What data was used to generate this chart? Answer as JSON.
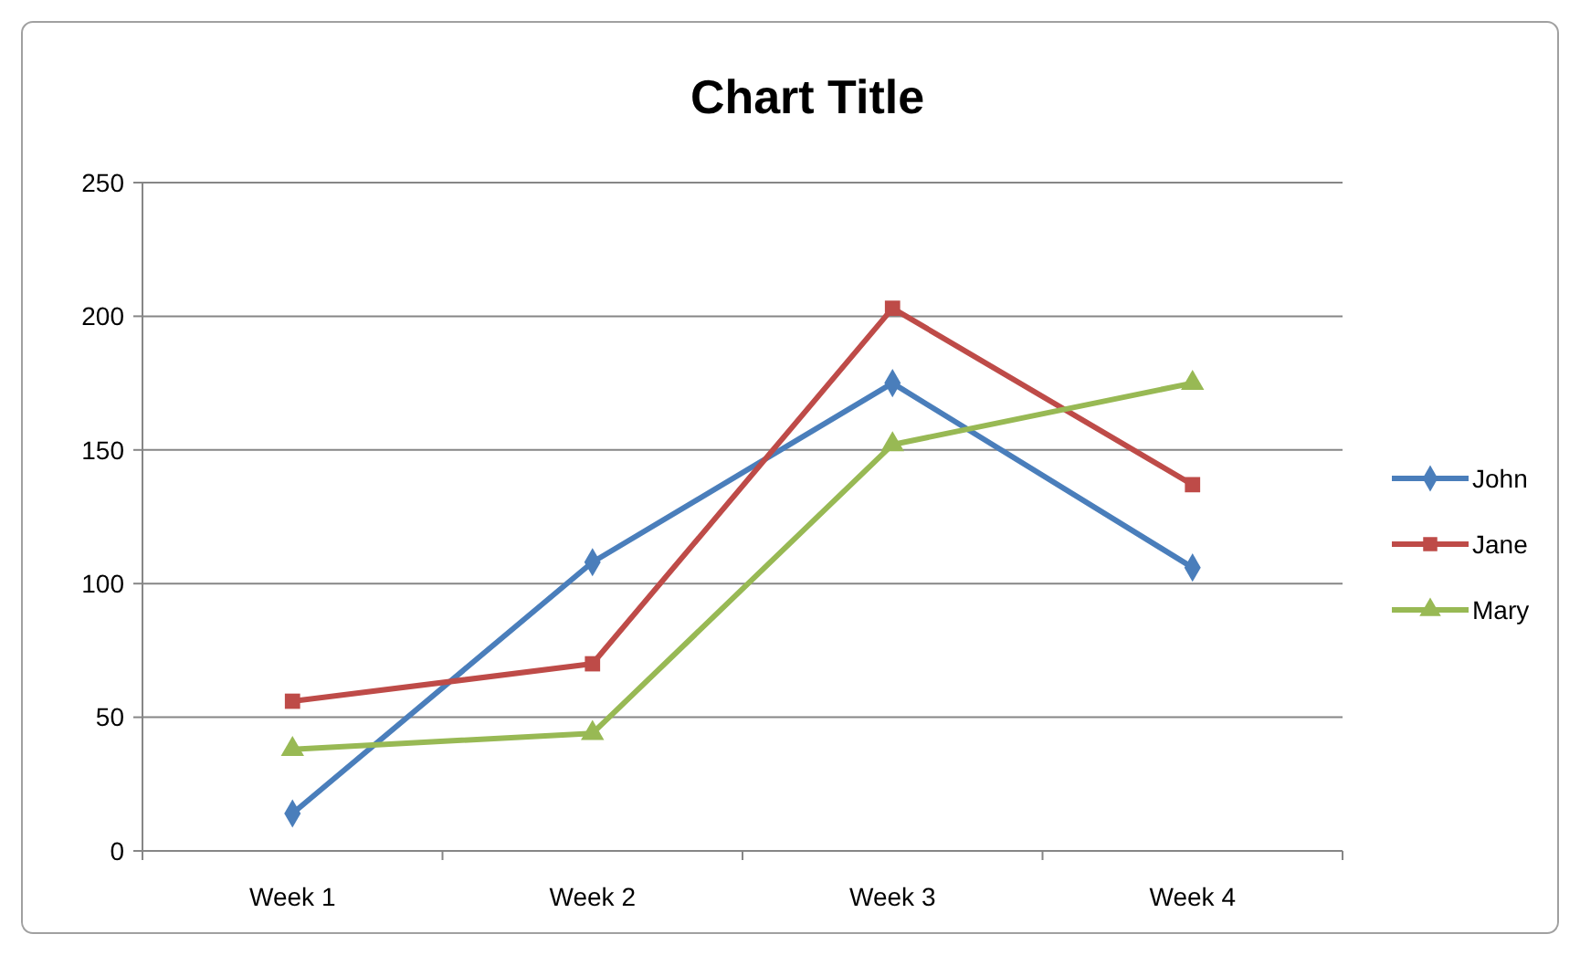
{
  "chart_data": {
    "type": "line",
    "title": "Chart Title",
    "categories": [
      "Week 1",
      "Week 2",
      "Week 3",
      "Week 4"
    ],
    "series": [
      {
        "name": "John",
        "color": "#4a7ebb",
        "values": [
          14,
          108,
          175,
          106
        ],
        "marker": "diamond"
      },
      {
        "name": "Jane",
        "color": "#be4b48",
        "values": [
          56,
          70,
          203,
          137
        ],
        "marker": "square"
      },
      {
        "name": "Mary",
        "color": "#98b954",
        "values": [
          38,
          44,
          152,
          175
        ],
        "marker": "triangle"
      }
    ],
    "ylim": [
      0,
      250
    ],
    "yticks": [
      0,
      50,
      100,
      150,
      200,
      250
    ],
    "grid": "y",
    "legend": "right",
    "line_style": "solid"
  }
}
